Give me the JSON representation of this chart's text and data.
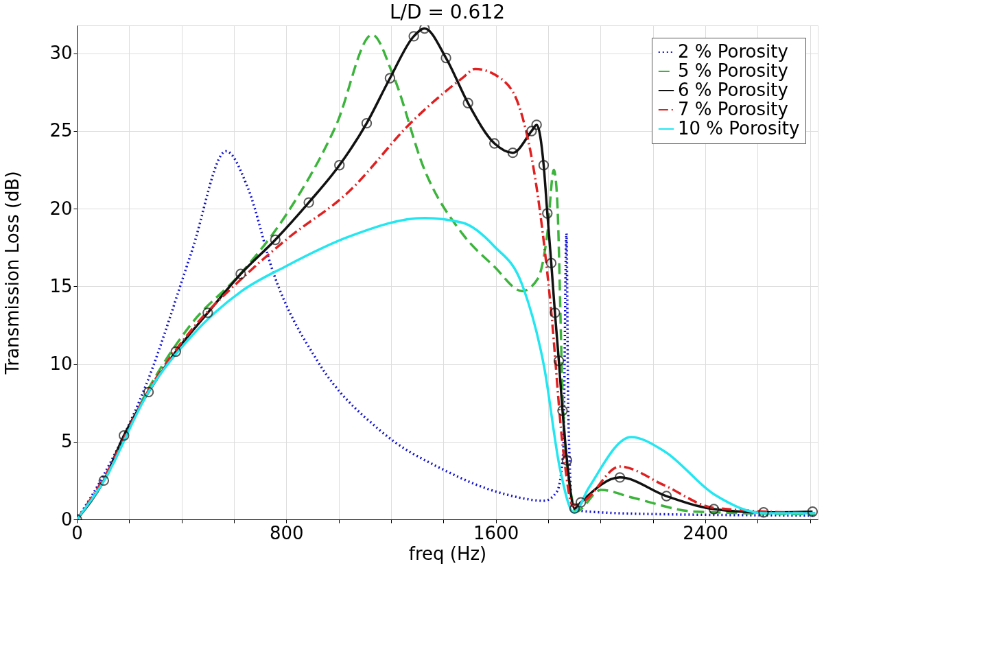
{
  "chart_data": {
    "type": "line",
    "title": "L/D = 0.612",
    "xlabel": "freq (Hz)",
    "ylabel": "Transmission Loss (dB)",
    "xlim": [
      0,
      2830
    ],
    "ylim": [
      0,
      31.8
    ],
    "xticks": [
      0,
      {
        "value": 200,
        "label": null
      },
      {
        "value": 400,
        "label": null
      },
      {
        "value": 600,
        "label": null
      },
      800,
      {
        "value": 1000,
        "label": null
      },
      {
        "value": 1200,
        "label": null
      },
      {
        "value": 1400,
        "label": null
      },
      1600,
      {
        "value": 1800,
        "label": null
      },
      {
        "value": 2000,
        "label": null
      },
      {
        "value": 2200,
        "label": null
      },
      2400,
      {
        "value": 2600,
        "label": null
      },
      {
        "value": 2800,
        "label": null
      }
    ],
    "yticks": [
      0,
      5,
      10,
      15,
      20,
      25,
      30
    ],
    "grid": true,
    "legend": "top right",
    "series": [
      {
        "name": "2 % Porosity",
        "color": "#1010d0",
        "line_style": "dotted",
        "marker": "none",
        "x": [
          0,
          101,
          270,
          438,
          570,
          654,
          750,
          919,
          1160,
          1400,
          1641,
          1785,
          1834,
          1858,
          1870,
          1877,
          1894,
          1954,
          2243,
          2820
        ],
        "values": [
          0,
          2.8,
          8.9,
          17.2,
          23.7,
          21.3,
          15.9,
          10.2,
          5.7,
          3.2,
          1.6,
          1.2,
          1.8,
          4.4,
          18.4,
          6.9,
          0.7,
          0.5,
          0.33,
          0.25
        ]
      },
      {
        "name": "5 % Porosity",
        "color": "#3cb43c",
        "line_style": "dashed",
        "marker": "none",
        "x": [
          0,
          101,
          270,
          438,
          630,
          799,
          991,
          1128,
          1208,
          1328,
          1472,
          1593,
          1701,
          1761,
          1797,
          1822,
          1834,
          1858,
          1894,
          1906,
          2002,
          2122,
          2363,
          2820
        ],
        "values": [
          0,
          2.4,
          8.3,
          12.6,
          15.9,
          19.6,
          25.4,
          31.2,
          28.6,
          22.5,
          18.4,
          16.3,
          14.7,
          15.5,
          18.4,
          22.5,
          20.8,
          6.9,
          1.1,
          0.5,
          1.9,
          1.4,
          0.5,
          0.33
        ]
      },
      {
        "name": "6 % Porosity",
        "color": "#111111",
        "line_style": "solid",
        "marker": "circle",
        "x": [
          0,
          103,
          180,
          274,
          378,
          500,
          626,
          758,
          886,
          1003,
          1107,
          1196,
          1287,
          1328,
          1410,
          1494,
          1595,
          1665,
          1737,
          1756,
          1783,
          1797,
          1812,
          1826,
          1841,
          1855,
          1872,
          1901,
          1925,
          2074,
          2252,
          2433,
          2623,
          2810
        ],
        "values": [
          0,
          2.5,
          5.4,
          8.2,
          10.8,
          13.3,
          15.8,
          18.0,
          20.4,
          22.8,
          25.5,
          28.4,
          31.1,
          31.6,
          29.7,
          26.8,
          24.2,
          23.6,
          25.0,
          25.4,
          22.8,
          19.7,
          16.5,
          13.3,
          10.2,
          7.0,
          3.8,
          0.7,
          1.1,
          2.7,
          1.5,
          0.66,
          0.45,
          0.5
        ]
      },
      {
        "name": "7 % Porosity",
        "color": "#e02020",
        "line_style": "dashdot",
        "marker": "none",
        "x": [
          0,
          101,
          270,
          438,
          630,
          799,
          1039,
          1280,
          1472,
          1521,
          1617,
          1689,
          1761,
          1809,
          1858,
          1894,
          1930,
          2074,
          2243,
          2435,
          2820
        ],
        "values": [
          0,
          2.6,
          8.2,
          12.2,
          15.5,
          18.0,
          21.1,
          25.6,
          28.4,
          29.0,
          28.4,
          26.6,
          20.8,
          13.9,
          4.4,
          0.9,
          1.1,
          3.4,
          2.2,
          0.74,
          0.4
        ]
      },
      {
        "name": "10 % Porosity",
        "color": "#22e6f0",
        "line_style": "solid",
        "marker": "none",
        "x": [
          0,
          101,
          270,
          438,
          630,
          799,
          1039,
          1328,
          1472,
          1593,
          1701,
          1785,
          1846,
          1899,
          1954,
          2117,
          2243,
          2435,
          2627,
          2820
        ],
        "values": [
          0,
          2.4,
          8.1,
          11.8,
          14.7,
          16.3,
          18.2,
          19.4,
          19.1,
          17.6,
          15.1,
          9.8,
          3.2,
          0.45,
          2.0,
          5.3,
          4.4,
          1.6,
          0.4,
          0.4
        ]
      }
    ]
  }
}
